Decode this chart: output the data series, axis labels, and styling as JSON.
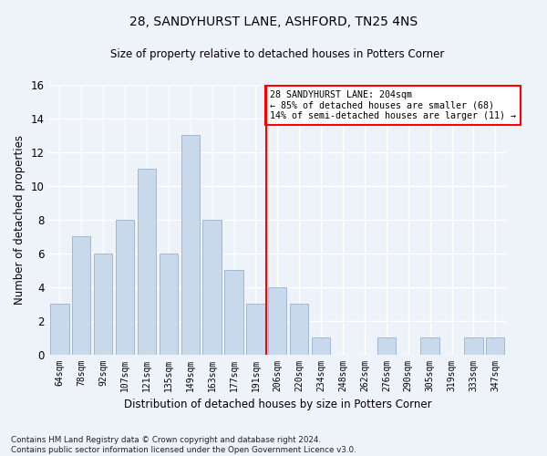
{
  "title": "28, SANDYHURST LANE, ASHFORD, TN25 4NS",
  "subtitle": "Size of property relative to detached houses in Potters Corner",
  "xlabel": "Distribution of detached houses by size in Potters Corner",
  "ylabel": "Number of detached properties",
  "bar_color": "#c9d9ec",
  "bar_edgecolor": "#a0b8d8",
  "categories": [
    "64sqm",
    "78sqm",
    "92sqm",
    "107sqm",
    "121sqm",
    "135sqm",
    "149sqm",
    "163sqm",
    "177sqm",
    "191sqm",
    "206sqm",
    "220sqm",
    "234sqm",
    "248sqm",
    "262sqm",
    "276sqm",
    "290sqm",
    "305sqm",
    "319sqm",
    "333sqm",
    "347sqm"
  ],
  "values": [
    3,
    7,
    6,
    8,
    11,
    6,
    13,
    8,
    5,
    3,
    4,
    3,
    1,
    0,
    0,
    1,
    0,
    1,
    0,
    1,
    1
  ],
  "ylim": [
    0,
    16
  ],
  "yticks": [
    0,
    2,
    4,
    6,
    8,
    10,
    12,
    14,
    16
  ],
  "property_line_idx": 9.5,
  "annotation_text": "28 SANDYHURST LANE: 204sqm\n← 85% of detached houses are smaller (68)\n14% of semi-detached houses are larger (11) →",
  "annotation_box_color": "white",
  "annotation_box_edgecolor": "red",
  "line_color": "red",
  "footnote": "Contains HM Land Registry data © Crown copyright and database right 2024.\nContains public sector information licensed under the Open Government Licence v3.0.",
  "background_color": "#eef2f9",
  "grid_color": "white"
}
